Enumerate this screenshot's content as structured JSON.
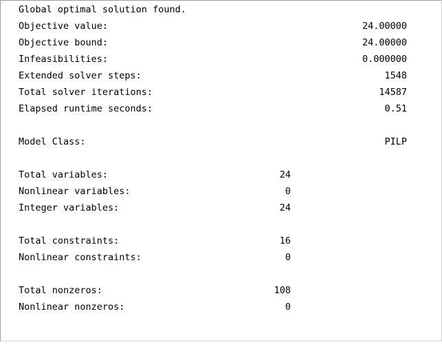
{
  "report": {
    "status": "Global optimal solution found.",
    "solver_stats": [
      {
        "label": "Objective value:",
        "value": "24.00000"
      },
      {
        "label": "Objective bound:",
        "value": "24.00000"
      },
      {
        "label": "Infeasibilities:",
        "value": "0.000000"
      },
      {
        "label": "Extended solver steps:",
        "value": "1548"
      },
      {
        "label": "Total solver iterations:",
        "value": "14587"
      },
      {
        "label": "Elapsed runtime seconds:",
        "value": "0.51"
      }
    ],
    "model_class": {
      "label": "Model Class:",
      "value": "PILP"
    },
    "variables": [
      {
        "label": "Total variables:",
        "value": "24"
      },
      {
        "label": "Nonlinear variables:",
        "value": "0"
      },
      {
        "label": "Integer variables:",
        "value": "24"
      }
    ],
    "constraints": [
      {
        "label": "Total constraints:",
        "value": "16"
      },
      {
        "label": "Nonlinear constraints:",
        "value": "0"
      }
    ],
    "nonzeros": [
      {
        "label": "Total nonzeros:",
        "value": "108"
      },
      {
        "label": "Nonlinear nonzeros:",
        "value": "0"
      }
    ]
  }
}
